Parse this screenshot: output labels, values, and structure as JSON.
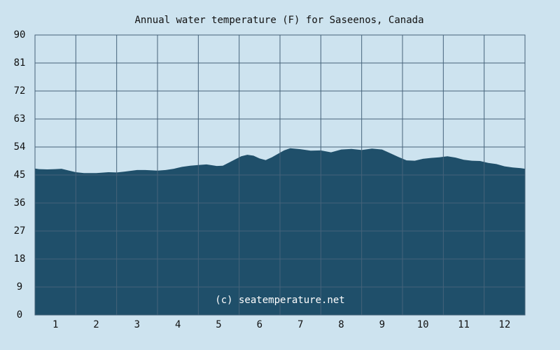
{
  "colors": {
    "background": "#cde3ef",
    "plot_background": "#cde3ef",
    "area_fill": "#1f4f6a",
    "grid": "#46637a",
    "text": "#111111",
    "watermark": "#ffffff"
  },
  "watermark": "(c) seatemperature.net",
  "chart_data": {
    "type": "area",
    "title": "Annual water temperature (F) for Saseenos, Canada",
    "xlabel": "",
    "ylabel": "",
    "x_ticks": [
      "1",
      "2",
      "3",
      "4",
      "5",
      "6",
      "7",
      "8",
      "9",
      "10",
      "11",
      "12"
    ],
    "y_ticks": [
      "0",
      "9",
      "18",
      "27",
      "36",
      "45",
      "54",
      "63",
      "72",
      "81",
      "90"
    ],
    "ylim": [
      0,
      90
    ],
    "xlim": [
      0.5,
      12.5
    ],
    "grid": true,
    "legend": "none",
    "series": [
      {
        "x": [
          0.5,
          0.6,
          0.8,
          1.0,
          1.15,
          1.3,
          1.5,
          1.7,
          2.0,
          2.3,
          2.5,
          2.7,
          3.0,
          3.2,
          3.5,
          3.7,
          3.9,
          4.1,
          4.3,
          4.5,
          4.7,
          4.8,
          4.95,
          5.1,
          5.25,
          5.4,
          5.55,
          5.7,
          5.85,
          6.0,
          6.15,
          6.3,
          6.45,
          6.6,
          6.75,
          7.0,
          7.25,
          7.5,
          7.75,
          8.0,
          8.25,
          8.5,
          8.75,
          9.0,
          9.2,
          9.4,
          9.6,
          9.8,
          10.0,
          10.2,
          10.4,
          10.6,
          10.8,
          11.0,
          11.2,
          11.4,
          11.6,
          11.8,
          12.0,
          12.2,
          12.4,
          12.5
        ],
        "values": [
          47.1,
          46.9,
          46.8,
          46.9,
          47.0,
          46.5,
          45.9,
          45.6,
          45.6,
          45.9,
          45.8,
          46.1,
          46.6,
          46.6,
          46.4,
          46.6,
          47.0,
          47.6,
          48.0,
          48.2,
          48.4,
          48.2,
          47.9,
          48.0,
          49.0,
          50.0,
          51.0,
          51.5,
          51.2,
          50.3,
          49.8,
          50.7,
          51.8,
          52.9,
          53.6,
          53.3,
          52.8,
          52.9,
          52.3,
          53.2,
          53.4,
          53.0,
          53.5,
          53.2,
          52.0,
          50.8,
          49.7,
          49.6,
          50.2,
          50.5,
          50.7,
          51.0,
          50.6,
          49.9,
          49.6,
          49.5,
          48.9,
          48.5,
          47.8,
          47.4,
          47.2,
          47.0
        ]
      }
    ]
  }
}
